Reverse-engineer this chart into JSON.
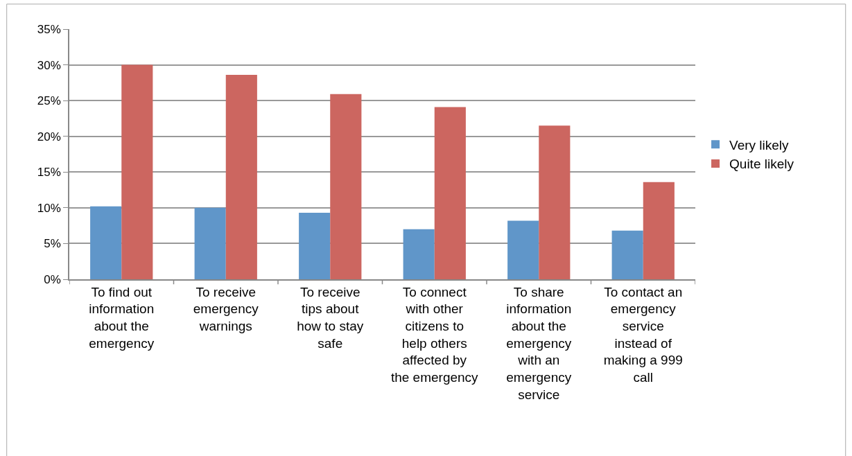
{
  "chart_data": {
    "type": "bar",
    "categories": [
      "To find out information about the emergency",
      "To receive emergency warnings",
      "To receive tips about how to stay safe",
      "To connect with other citizens to help others affected by the emergency",
      "To share information about the emergency with an emergency service",
      "To contact an emergency service instead of making a 999 call"
    ],
    "series": [
      {
        "name": "Very likely",
        "color": "#6096c9",
        "values": [
          10.2,
          10.0,
          9.3,
          7.0,
          8.2,
          6.8
        ]
      },
      {
        "name": "Quite likely",
        "color": "#cc6660",
        "values": [
          30.0,
          28.6,
          25.9,
          24.1,
          21.5,
          13.6
        ]
      }
    ],
    "ylim": [
      0,
      35
    ],
    "yticks": [
      {
        "value": 0,
        "label": "0%"
      },
      {
        "value": 5,
        "label": "5%"
      },
      {
        "value": 10,
        "label": "10%"
      },
      {
        "value": 15,
        "label": "15%"
      },
      {
        "value": 20,
        "label": "20%"
      },
      {
        "value": 25,
        "label": "25%"
      },
      {
        "value": 30,
        "label": "30%"
      },
      {
        "value": 35,
        "label": "35%"
      }
    ],
    "grid": "y",
    "legend": "right"
  }
}
